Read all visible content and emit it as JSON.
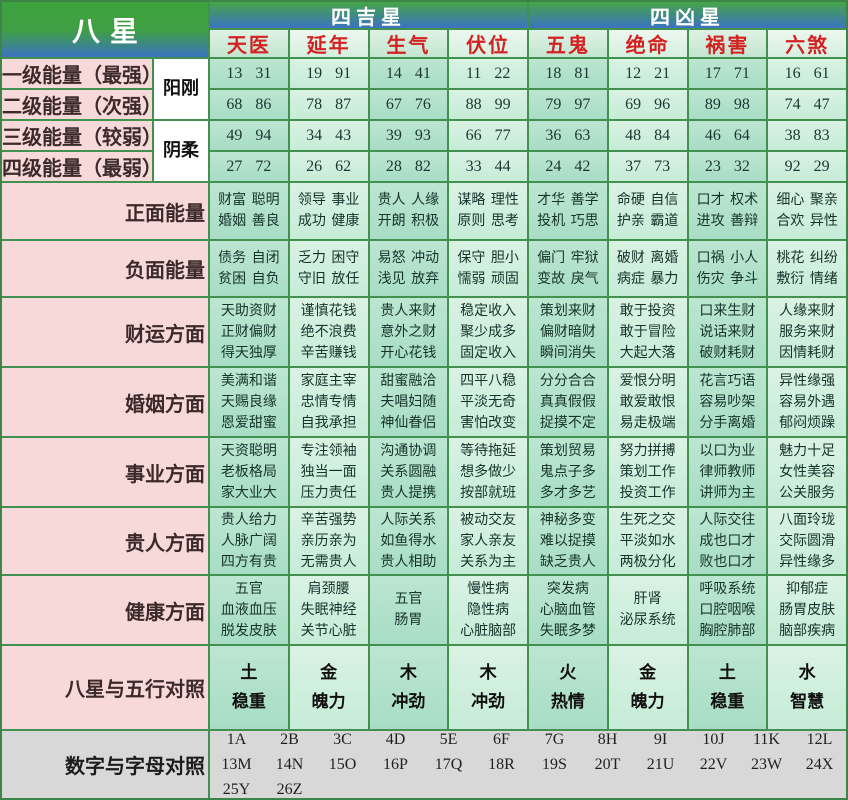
{
  "header": {
    "title": "八星",
    "good_group": "四吉星",
    "bad_group": "四凶星",
    "stars": [
      "天医",
      "延年",
      "生气",
      "伏位",
      "五鬼",
      "绝命",
      "祸害",
      "六煞"
    ]
  },
  "yin_yang": {
    "yang": "阳刚",
    "yin": "阴柔"
  },
  "energy_rows": [
    {
      "label": "一级能量（最强）",
      "values": [
        "13 31",
        "19 91",
        "14 41",
        "11 22",
        "18 81",
        "12 21",
        "17 71",
        "16 61"
      ]
    },
    {
      "label": "二级能量（次强）",
      "values": [
        "68 86",
        "78 87",
        "67 76",
        "88 99",
        "79 97",
        "69 96",
        "89 98",
        "74 47"
      ]
    },
    {
      "label": "三级能量（较弱）",
      "values": [
        "49 94",
        "34 43",
        "39 93",
        "66 77",
        "36 63",
        "48 84",
        "46 64",
        "38 83"
      ]
    },
    {
      "label": "四级能量（最弱）",
      "values": [
        "27 72",
        "26 62",
        "28 82",
        "33 44",
        "24 42",
        "37 73",
        "23 32",
        "92 29"
      ]
    }
  ],
  "aspect_rows": [
    {
      "label": "正面能量",
      "cells": [
        [
          "财富 聪明",
          "婚姻 善良"
        ],
        [
          "领导 事业",
          "成功 健康"
        ],
        [
          "贵人 人缘",
          "开朗 积极"
        ],
        [
          "谋略 理性",
          "原则 思考"
        ],
        [
          "才华 善学",
          "投机 巧思"
        ],
        [
          "命硬 自信",
          "护亲 霸道"
        ],
        [
          "口才 权术",
          "进攻 善辩"
        ],
        [
          "细心 聚亲",
          "合欢 异性"
        ]
      ]
    },
    {
      "label": "负面能量",
      "cells": [
        [
          "债务 自闭",
          "贫困 自负"
        ],
        [
          "乏力 困守",
          "守旧 放任"
        ],
        [
          "易怒 冲动",
          "浅见 放弃"
        ],
        [
          "保守 胆小",
          "懦弱 顽固"
        ],
        [
          "偏门 牢狱",
          "变故 戾气"
        ],
        [
          "破财 离婚",
          "病症 暴力"
        ],
        [
          "口祸 小人",
          "伤灾 争斗"
        ],
        [
          "桃花 纠纷",
          "敷衍 情绪"
        ]
      ]
    },
    {
      "label": "财运方面",
      "cells": [
        [
          "天助资财",
          "正财偏财",
          "得天独厚"
        ],
        [
          "谨慎花钱",
          "绝不浪费",
          "辛苦赚钱"
        ],
        [
          "贵人来财",
          "意外之财",
          "开心花钱"
        ],
        [
          "稳定收入",
          "聚少成多",
          "固定收入"
        ],
        [
          "策划来财",
          "偏财暗财",
          "瞬间消失"
        ],
        [
          "敢于投资",
          "敢于冒险",
          "大起大落"
        ],
        [
          "口来生财",
          "说话来财",
          "破财耗财"
        ],
        [
          "人缘来财",
          "服务来财",
          "因情耗财"
        ]
      ]
    },
    {
      "label": "婚姻方面",
      "cells": [
        [
          "美满和谐",
          "天赐良缘",
          "恩爱甜蜜"
        ],
        [
          "家庭主宰",
          "忠情专情",
          "自我承担"
        ],
        [
          "甜蜜融洽",
          "夫唱妇随",
          "神仙眷侣"
        ],
        [
          "四平八稳",
          "平淡无奇",
          "害怕改变"
        ],
        [
          "分分合合",
          "真真假假",
          "捉摸不定"
        ],
        [
          "爱恨分明",
          "敢爱敢恨",
          "易走极端"
        ],
        [
          "花言巧语",
          "容易吵架",
          "分手离婚"
        ],
        [
          "异性缘强",
          "容易外遇",
          "郁闷烦躁"
        ]
      ]
    },
    {
      "label": "事业方面",
      "cells": [
        [
          "天资聪明",
          "老板格局",
          "家大业大"
        ],
        [
          "专注领袖",
          "独当一面",
          "压力责任"
        ],
        [
          "沟通协调",
          "关系圆融",
          "贵人提携"
        ],
        [
          "等待拖延",
          "想多做少",
          "按部就班"
        ],
        [
          "策划贸易",
          "鬼点子多",
          "多才多艺"
        ],
        [
          "努力拼搏",
          "策划工作",
          "投资工作"
        ],
        [
          "以口为业",
          "律师教师",
          "讲师为主"
        ],
        [
          "魅力十足",
          "女性美容",
          "公关服务"
        ]
      ]
    },
    {
      "label": "贵人方面",
      "cells": [
        [
          "贵人给力",
          "人脉广阔",
          "四方有贵"
        ],
        [
          "辛苦强势",
          "亲历亲为",
          "无需贵人"
        ],
        [
          "人际关系",
          "如鱼得水",
          "贵人相助"
        ],
        [
          "被动交友",
          "家人亲友",
          "关系为主"
        ],
        [
          "神秘多变",
          "难以捉摸",
          "缺乏贵人"
        ],
        [
          "生死之交",
          "平淡如水",
          "两极分化"
        ],
        [
          "人际交往",
          "成也口才",
          "败也口才"
        ],
        [
          "八面玲珑",
          "交际圆滑",
          "异性缘多"
        ]
      ]
    },
    {
      "label": "健康方面",
      "cells": [
        [
          "五官",
          "血液血压",
          "脱发皮肤"
        ],
        [
          "肩颈腰",
          "失眠神经",
          "关节心脏"
        ],
        [
          "五官",
          "肠胃"
        ],
        [
          "慢性病",
          "隐性病",
          "心脏脑部"
        ],
        [
          "突发病",
          "心脑血管",
          "失眠多梦"
        ],
        [
          "肝肾",
          "泌尿系统"
        ],
        [
          "呼吸系统",
          "口腔咽喉",
          "胸腔肺部"
        ],
        [
          "抑郁症",
          "肠胃皮肤",
          "脑部疾病"
        ]
      ]
    },
    {
      "label": "八星与五行对照",
      "cells": [
        [
          "土",
          "稳重"
        ],
        [
          "金",
          "魄力"
        ],
        [
          "木",
          "冲劲"
        ],
        [
          "木",
          "冲劲"
        ],
        [
          "火",
          "热情"
        ],
        [
          "金",
          "魄力"
        ],
        [
          "土",
          "稳重"
        ],
        [
          "水",
          "智慧"
        ]
      ]
    }
  ],
  "letters_row": {
    "label": "数字与字母对照",
    "codes": [
      "1A",
      "2B",
      "3C",
      "4D",
      "5E",
      "6F",
      "7G",
      "8H",
      "9I",
      "10J",
      "11K",
      "12L",
      "13M",
      "14N",
      "15O",
      "16P",
      "17Q",
      "18R",
      "19S",
      "20T",
      "21U",
      "22V",
      "23W",
      "24X",
      "25Y",
      "26Z"
    ]
  },
  "colors": {
    "border_green": "#43914f",
    "header_green": "#3ea23e",
    "header_blue": "#3b72c2",
    "label_pink": "#f8d9da",
    "star_red": "#d32222",
    "cell_aqua_dark": "#aedec7",
    "cell_aqua_light": "#d0eedd",
    "bottom_gray": "#d8d8d8"
  }
}
